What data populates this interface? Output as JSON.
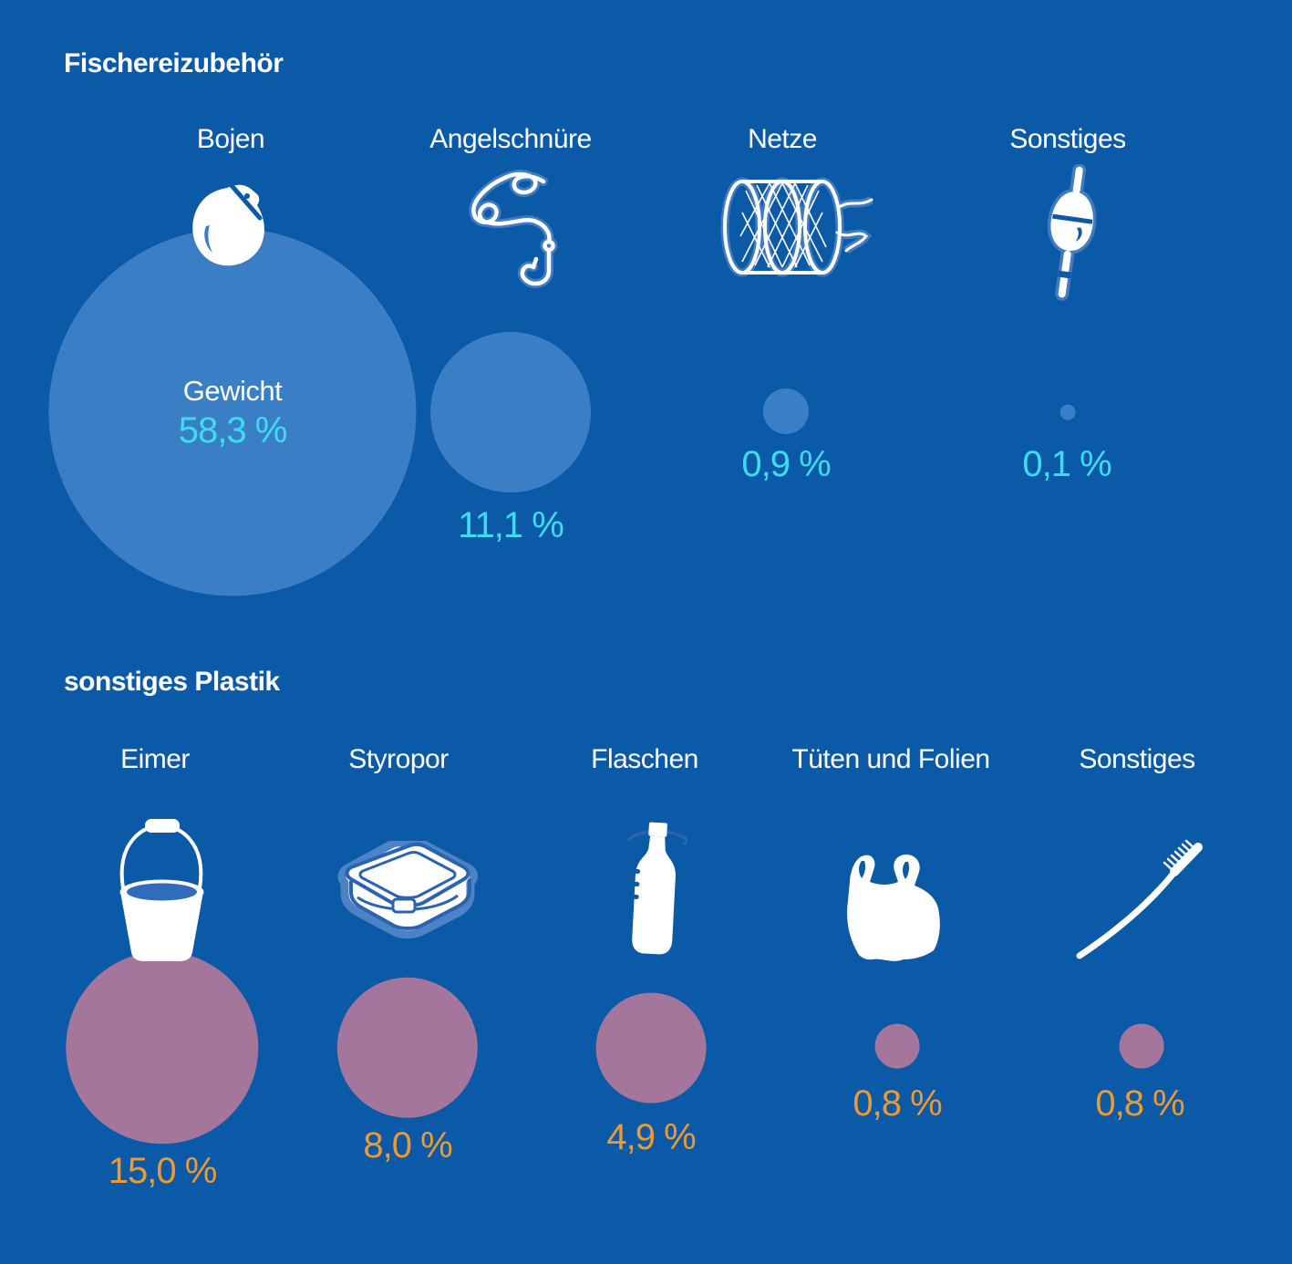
{
  "canvas": {
    "background": "#0b5aa7"
  },
  "colors": {
    "background": "#0b5aa7",
    "fishing_bubble": "#3a7fc6",
    "plastic_bubble": "#a5769b",
    "fishing_value_text": "#3fdcf0",
    "plastic_value_text": "#f0992e",
    "label_text": "#ffffff",
    "icon_outline": "#4b83c6",
    "icon_line": "#2c63ae",
    "bucket_water": "#2f6cbb"
  },
  "chart_data": [
    {
      "type": "bubble",
      "group": "Fischereizubehör",
      "unit": "%",
      "center_label": "Gewicht",
      "bubble_color": "#3a7fc6",
      "value_color": "#3fdcf0",
      "radius_scale_px_per_sqrt_pct": 26.4,
      "legend_position": "none",
      "items": [
        {
          "label": "Bojen",
          "icon": "buoy-icon",
          "value": 58.3,
          "value_text": "58,3 %"
        },
        {
          "label": "Angelschnüre",
          "icon": "fishing-line-icon",
          "value": 11.1,
          "value_text": "11,1 %"
        },
        {
          "label": "Netze",
          "icon": "net-icon",
          "value": 0.9,
          "value_text": "0,9 %"
        },
        {
          "label": "Sonstiges",
          "icon": "fishing-float-icon",
          "value": 0.1,
          "value_text": "0,1 %"
        }
      ]
    },
    {
      "type": "bubble",
      "group": "sonstiges Plastik",
      "unit": "%",
      "bubble_color": "#a5769b",
      "value_color": "#f0992e",
      "radius_scale_px_per_sqrt_pct": 27.3,
      "legend_position": "none",
      "items": [
        {
          "label": "Eimer",
          "icon": "bucket-icon",
          "value": 15.0,
          "value_text": "15,0 %"
        },
        {
          "label": "Styropor",
          "icon": "styrofoam-box-icon",
          "value": 8.0,
          "value_text": "8,0 %"
        },
        {
          "label": "Flaschen",
          "icon": "bottle-icon",
          "value": 4.9,
          "value_text": "4,9 %"
        },
        {
          "label": "Tüten und Folien",
          "icon": "plastic-bag-icon",
          "value": 0.8,
          "value_text": "0,8 %"
        },
        {
          "label": "Sonstiges",
          "icon": "toothbrush-icon",
          "value": 0.8,
          "value_text": "0,8 %"
        }
      ]
    }
  ]
}
